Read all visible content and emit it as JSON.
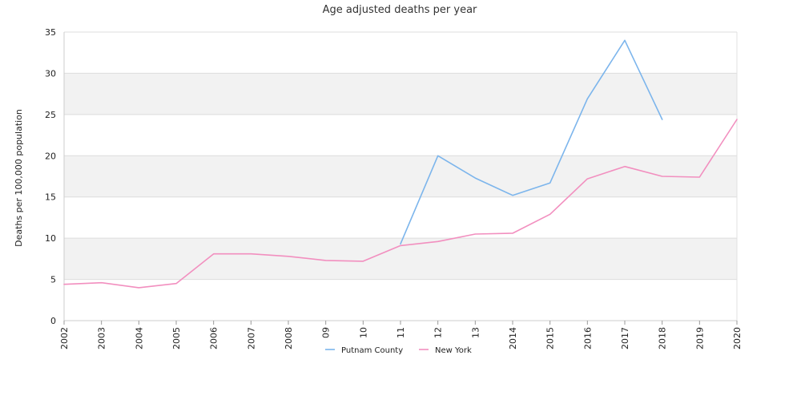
{
  "chart_data": {
    "type": "line",
    "title": "Age adjusted deaths per year",
    "xlabel": "",
    "ylabel": "Deaths per 100,000 population",
    "ylim": [
      0,
      35
    ],
    "yticks": [
      0,
      5,
      10,
      15,
      20,
      25,
      30,
      35
    ],
    "categories": [
      "2002",
      "2003",
      "2004",
      "2005",
      "2006",
      "2007",
      "2008",
      "09",
      "10",
      "11",
      "12",
      "13",
      "2014",
      "2015",
      "2016",
      "2017",
      "2018",
      "2019",
      "2020"
    ],
    "grid": "alternating horizontal bands",
    "legend": "bottom-center",
    "series": [
      {
        "name": "Putnam County",
        "color": "#7cb5ec",
        "values": [
          null,
          null,
          null,
          null,
          null,
          null,
          null,
          null,
          null,
          9.3,
          20.0,
          17.3,
          15.2,
          16.7,
          26.9,
          34.0,
          24.4,
          null,
          null
        ]
      },
      {
        "name": "New York",
        "color": "#f28fbf",
        "values": [
          4.4,
          4.6,
          4.0,
          4.5,
          8.1,
          8.1,
          7.8,
          7.3,
          7.2,
          9.1,
          9.6,
          10.5,
          10.6,
          12.9,
          17.2,
          18.7,
          17.5,
          17.4,
          24.4
        ]
      }
    ]
  }
}
